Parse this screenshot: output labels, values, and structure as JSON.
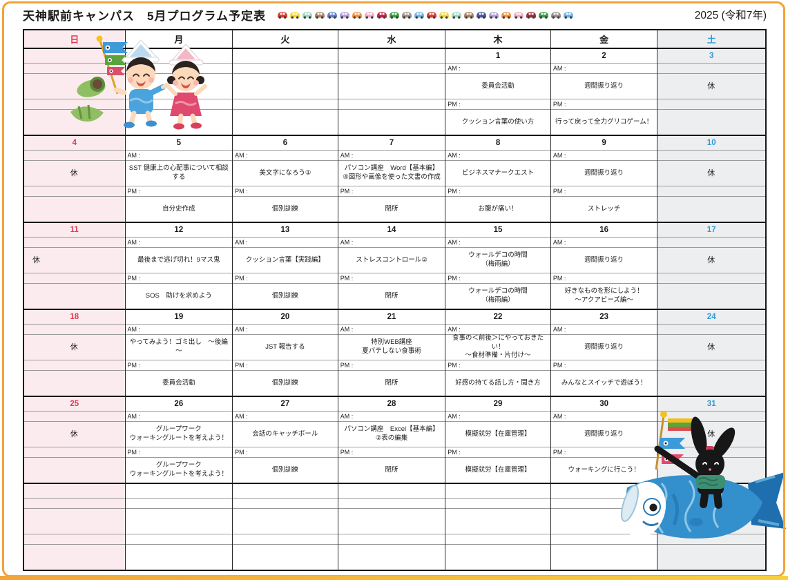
{
  "page": {
    "title": "天神駅前キャンパス　5月プログラム予定表",
    "year_label": "2025 (令和7年)"
  },
  "decor": {
    "car_colors": [
      "#dd3b33",
      "#f2d934",
      "#9fd6bd",
      "#ab8465",
      "#5f83cf",
      "#b39fdb",
      "#ef9440",
      "#f2a9c4",
      "#c3264a",
      "#3e9e44",
      "#9a9188",
      "#6db5e8",
      "#dd3b33",
      "#f2d934",
      "#9fd6bd",
      "#ab8465",
      "#46599f",
      "#b39fdb",
      "#ef9440",
      "#f2a9c4",
      "#a12f3b",
      "#3e9e44",
      "#9a9188",
      "#6db5e8"
    ],
    "illustrations": [
      {
        "name": "children-with-koinobori-and-chimaki"
      },
      {
        "name": "rabbit-riding-koinobori"
      }
    ]
  },
  "calendar": {
    "weekday_headers": [
      {
        "label": "日",
        "kind": "sun"
      },
      {
        "label": "月",
        "kind": "weekday"
      },
      {
        "label": "火",
        "kind": "weekday"
      },
      {
        "label": "水",
        "kind": "weekday"
      },
      {
        "label": "木",
        "kind": "weekday"
      },
      {
        "label": "金",
        "kind": "weekday"
      },
      {
        "label": "土",
        "kind": "sat"
      }
    ],
    "time_labels": {
      "am": "AM :",
      "pm": "PM :"
    },
    "rest_label": "休",
    "weeks": [
      {
        "days": [
          {},
          {},
          {},
          {},
          {
            "date": "1",
            "am": "委員会活動",
            "pm": "クッション言葉の使い方"
          },
          {
            "date": "2",
            "am": "週間振り返り",
            "pm": "行って戻って全力グリコゲーム！"
          },
          {
            "date": "3",
            "rest": true
          }
        ]
      },
      {
        "days": [
          {
            "date": "4",
            "rest": true
          },
          {
            "date": "5",
            "am": "SST 健康上の心配事について相談する",
            "pm": "自分史作成"
          },
          {
            "date": "6",
            "am": "美文字になろう①",
            "pm": "個別訓練"
          },
          {
            "date": "7",
            "am": "パソコン講座　Word【基本編】\n④図形や画像を使った文書の作成",
            "pm": "閉所"
          },
          {
            "date": "8",
            "am": "ビジネスマナークエスト",
            "pm": "お腹が痛い！"
          },
          {
            "date": "9",
            "am": "週間振り返り",
            "pm": "ストレッチ"
          },
          {
            "date": "10",
            "rest": true
          }
        ]
      },
      {
        "days": [
          {
            "date": "11",
            "rest": true
          },
          {
            "date": "12",
            "am": "最後まで逃げ切れ！9マス鬼",
            "pm": "SOS　助けを求めよう"
          },
          {
            "date": "13",
            "am": "クッション言葉【実践編】",
            "pm": "個別訓練"
          },
          {
            "date": "14",
            "am": "ストレスコントロール②",
            "pm": "閉所"
          },
          {
            "date": "15",
            "am": "ウォールデコの時間\n（梅雨編）",
            "pm": "ウォールデコの時間\n（梅雨編）"
          },
          {
            "date": "16",
            "am": "週間振り返り",
            "pm": "好きなものを形にしよう！\n～アクアビーズ編～"
          },
          {
            "date": "17",
            "rest": true
          }
        ]
      },
      {
        "days": [
          {
            "date": "18",
            "rest": true
          },
          {
            "date": "19",
            "am": "やってみよう！ゴミ出し　～後編～",
            "pm": "委員会活動"
          },
          {
            "date": "20",
            "am": "JST 報告する",
            "pm": "個別訓練"
          },
          {
            "date": "21",
            "am": "特別WEB講座\n夏バテしない食事術",
            "pm": "閉所"
          },
          {
            "date": "22",
            "am": "食事の＜前後＞にやっておきたい！\n～食材準備・片付け～",
            "pm": "好感の持てる話し方・聞き方"
          },
          {
            "date": "23",
            "am": "週間振り返り",
            "pm": "みんなとスイッチで遊ぼう！"
          },
          {
            "date": "24",
            "rest": true
          }
        ]
      },
      {
        "days": [
          {
            "date": "25",
            "rest": true
          },
          {
            "date": "26",
            "am": "グループワーク\nウォーキングルートを考えよう！",
            "pm": "グループワーク\nウォーキングルートを考えよう！"
          },
          {
            "date": "27",
            "am": "会話のキャッチボール",
            "pm": "個別訓練"
          },
          {
            "date": "28",
            "am": "パソコン講座　Excel【基本編】\n②表の編集",
            "pm": "閉所"
          },
          {
            "date": "29",
            "am": "模擬就労【在庫管理】",
            "pm": "模擬就労【在庫管理】"
          },
          {
            "date": "30",
            "am": "週間振り返り",
            "pm": "ウォーキングに行こう！"
          },
          {
            "date": "31",
            "rest": true
          }
        ]
      },
      {
        "days": [
          {},
          {},
          {},
          {},
          {},
          {},
          {}
        ]
      }
    ]
  },
  "colors": {
    "border_orange": "#f0a338",
    "sunday_bg": "#fcebee",
    "saturday_bg": "#eceeef",
    "sunday_text": "#e23a55",
    "saturday_text": "#2f9cd9"
  }
}
